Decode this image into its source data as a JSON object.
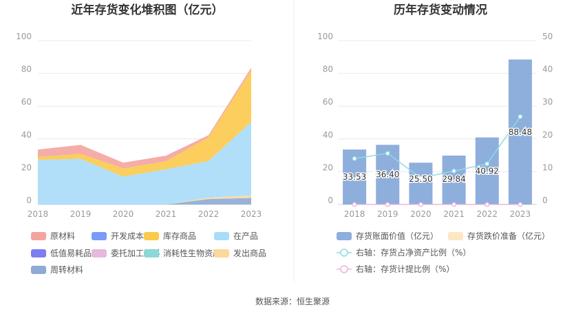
{
  "source_text": "数据来源：恒生聚源",
  "chart_data": [
    {
      "type": "area",
      "stacked": true,
      "title": "近年存货变化堆积图（亿元）",
      "categories": [
        "2018",
        "2019",
        "2020",
        "2021",
        "2022",
        "2023"
      ],
      "ylim": [
        0,
        100
      ],
      "yticks": [
        "0",
        "20",
        "40",
        "60",
        "80",
        "100"
      ],
      "grid": true,
      "legend_position": "bottom",
      "series": [
        {
          "name": "原材料",
          "color": "#f4a49e",
          "values": [
            4.5,
            5.5,
            3.5,
            3.5,
            1.3,
            1.6
          ]
        },
        {
          "name": "开发成本",
          "color": "#7a9cf6",
          "values": [
            0,
            0,
            0,
            0,
            0,
            0
          ]
        },
        {
          "name": "库存商品",
          "color": "#fbc94b",
          "values": [
            1.8,
            3.0,
            5.0,
            4.8,
            14.5,
            31.5
          ]
        },
        {
          "name": "在产品",
          "color": "#a8dcf8",
          "values": [
            27.2,
            27.9,
            17.0,
            21.5,
            22.4,
            44.9
          ]
        },
        {
          "name": "低值易耗品",
          "color": "#7b7ff0",
          "values": [
            0,
            0,
            0,
            0,
            0,
            0
          ]
        },
        {
          "name": "委托加工材料",
          "color": "#e5b8dc",
          "values": [
            0,
            0,
            0,
            0,
            0,
            0
          ]
        },
        {
          "name": "消耗性生物资产",
          "color": "#8dd7d7",
          "values": [
            0,
            0,
            0,
            0,
            0,
            0
          ]
        },
        {
          "name": "发出商品",
          "color": "#fcd89a",
          "values": [
            0,
            0,
            0,
            0,
            0.8,
            1.5
          ]
        },
        {
          "name": "周转材料",
          "color": "#8eaad6",
          "values": [
            0,
            0,
            0,
            0,
            3.3,
            4.0
          ]
        }
      ]
    },
    {
      "type": "bar",
      "title": "历年存货变动情况",
      "categories": [
        "2018",
        "2019",
        "2020",
        "2021",
        "2022",
        "2023"
      ],
      "ylim": [
        0,
        100
      ],
      "yticks": [
        "0",
        "20",
        "40",
        "60",
        "80",
        "100"
      ],
      "y2lim": [
        0,
        50
      ],
      "y2ticks": [
        "0",
        "10",
        "20",
        "30",
        "40",
        "50"
      ],
      "grid": true,
      "legend_position": "bottom",
      "series": [
        {
          "name": "存货账面价值（亿元）",
          "color": "#8eaedc",
          "axis": "left",
          "values": [
            33.53,
            36.4,
            25.5,
            29.84,
            40.92,
            88.48
          ],
          "labels": [
            "33.53",
            "36.40",
            "25.50",
            "29.84",
            "40.92",
            "88.48"
          ]
        },
        {
          "name": "存货跌价准备（亿元）",
          "color": "#fde6c3",
          "axis": "left",
          "values": [
            0,
            0,
            0,
            0,
            0,
            0
          ]
        },
        {
          "name": "右轴：存货占净资产比例（%）",
          "color": "#8fdbe4",
          "axis": "right",
          "type": "line",
          "values": [
            14.0,
            15.6,
            8.1,
            10.2,
            12.4,
            26.8
          ]
        },
        {
          "name": "右轴：存货计提比例（%）",
          "color": "#e8b7d8",
          "axis": "right",
          "type": "line",
          "values": [
            0,
            0,
            0,
            0,
            0,
            0
          ]
        }
      ]
    }
  ]
}
